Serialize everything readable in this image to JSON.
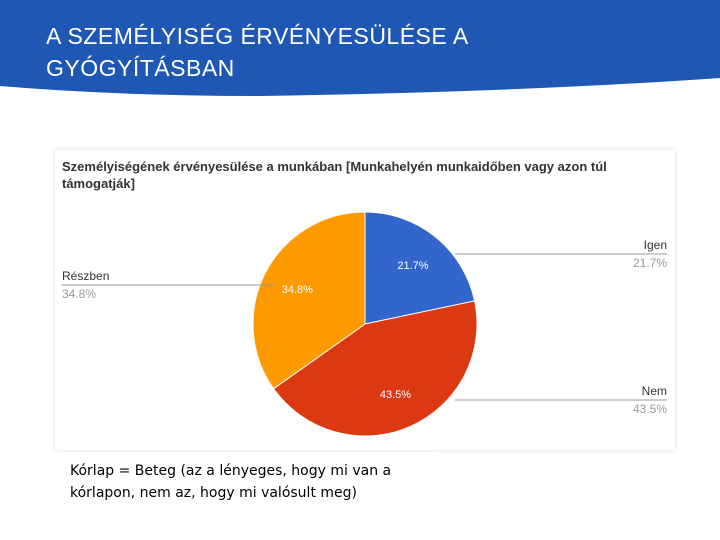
{
  "slide": {
    "title": "A SZEMÉLYISÉG ÉRVÉNYESÜLÉSE A GYÓGYÍTÁSBAN",
    "caption": "Kórlap = Beteg (az a lényeges, hogy mi van a kórlapon, nem az, hogy mi valósult meg)"
  },
  "colors": {
    "banner": "#1f57b5",
    "igen": "#3366cc",
    "nem": "#dc3912",
    "reszben": "#ff9900"
  },
  "chart_data": {
    "type": "pie",
    "title": "Személyiségének érvényesülése a munkában [Munkahelyén munkaidőben vagy azon túl támogatják]",
    "slices": [
      {
        "label": "Igen",
        "value": 21.7,
        "percent": "21.7%",
        "color": "#3366cc",
        "legend_side": "right"
      },
      {
        "label": "Nem",
        "value": 43.5,
        "percent": "43.5%",
        "color": "#dc3912",
        "legend_side": "right"
      },
      {
        "label": "Részben",
        "value": 34.8,
        "percent": "34.8%",
        "color": "#ff9900",
        "legend_side": "left"
      }
    ]
  }
}
